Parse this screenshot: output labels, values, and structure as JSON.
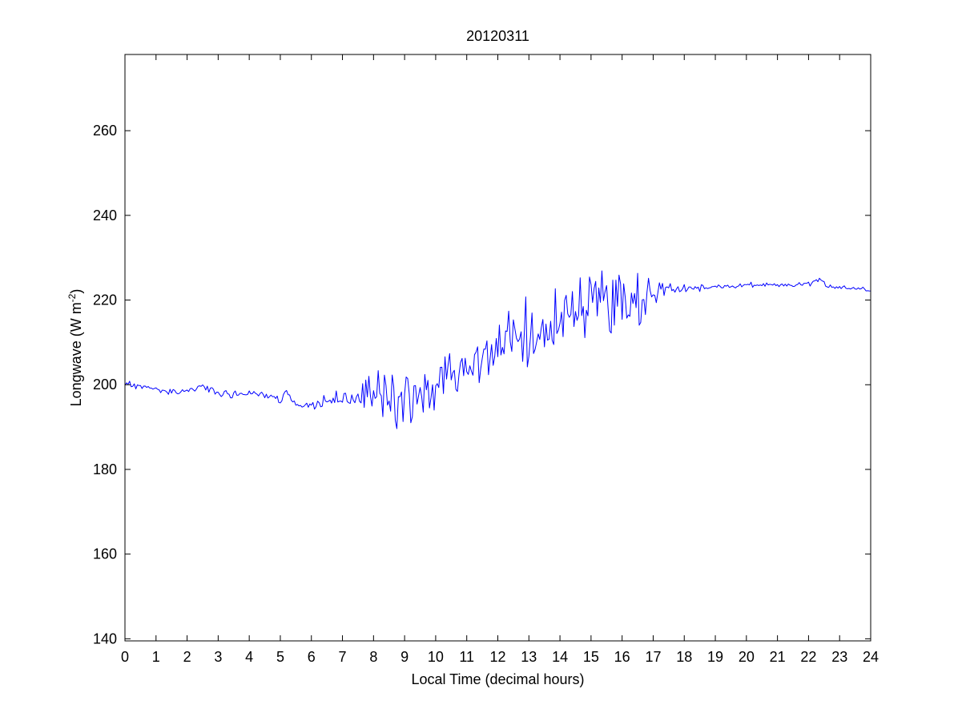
{
  "chart_data": {
    "type": "line",
    "title": "20120311",
    "xlabel": "Local Time (decimal hours)",
    "ylabel": {
      "prefix": "Longwave (W m",
      "exponent": "-2",
      "suffix": ")"
    },
    "xlim": [
      0,
      24
    ],
    "ylim": [
      139.5,
      278
    ],
    "xticks": [
      0,
      1,
      2,
      3,
      4,
      5,
      6,
      7,
      8,
      9,
      10,
      11,
      12,
      13,
      14,
      15,
      16,
      17,
      18,
      19,
      20,
      21,
      22,
      23,
      24
    ],
    "xtick_labels": [
      "0",
      "1",
      "2",
      "3",
      "4",
      "5",
      "6",
      "7",
      "8",
      "9",
      "10",
      "11",
      "12",
      "13",
      "14",
      "15",
      "16",
      "17",
      "18",
      "19",
      "20",
      "21",
      "22",
      "23",
      "24"
    ],
    "yticks": [
      140,
      160,
      180,
      200,
      220,
      240,
      260
    ],
    "ytick_labels": [
      "140",
      "160",
      "180",
      "200",
      "220",
      "240",
      "260"
    ],
    "grid": false,
    "line_color": "#0000ff",
    "series": [
      {
        "sample_step_hours": 0.05,
        "x": [
          0,
          0.5,
          1,
          1.5,
          2,
          2.5,
          3,
          3.5,
          4,
          4.5,
          5,
          5.25,
          5.5,
          6,
          6.5,
          7,
          7.5,
          8,
          8.5,
          9,
          9.5,
          10,
          10.5,
          11,
          11.5,
          12,
          12.5,
          13,
          13.5,
          14,
          14.5,
          15,
          15.5,
          16,
          16.5,
          17,
          17.5,
          18,
          18.5,
          19,
          19.5,
          20,
          20.5,
          21,
          21.5,
          22,
          22.3,
          22.6,
          23,
          23.5,
          24
        ],
        "y": [
          200.5,
          199.6,
          199.2,
          198.3,
          198.6,
          199.5,
          198.0,
          197.4,
          198.0,
          197.5,
          196.2,
          198.0,
          195.5,
          194.8,
          196.2,
          196.5,
          197.2,
          197.8,
          197.2,
          197.0,
          197.4,
          199.5,
          201.8,
          203.5,
          205.5,
          208.5,
          211.0,
          210.5,
          213.0,
          216.0,
          217.5,
          221.0,
          221.5,
          220.8,
          220.5,
          221.8,
          222.5,
          222.5,
          223.0,
          223.2,
          223.1,
          223.5,
          223.6,
          223.3,
          223.5,
          223.8,
          224.8,
          223.4,
          223.1,
          222.8,
          222.6
        ],
        "noise": {
          "hours": [
            0,
            5,
            6,
            7,
            7.5,
            8,
            8.5,
            9,
            9.5,
            10,
            11,
            12,
            13,
            14,
            15,
            15.5,
            16,
            16.5,
            17,
            17.5,
            18,
            19,
            24
          ],
          "amplitude": [
            0.3,
            0.5,
            0.6,
            1.0,
            1.5,
            2.5,
            3.2,
            3.5,
            3.5,
            3.2,
            3.0,
            3.5,
            4.0,
            4.2,
            4.8,
            4.5,
            4.2,
            3.5,
            1.8,
            1.0,
            0.5,
            0.3,
            0.3
          ]
        }
      }
    ]
  }
}
